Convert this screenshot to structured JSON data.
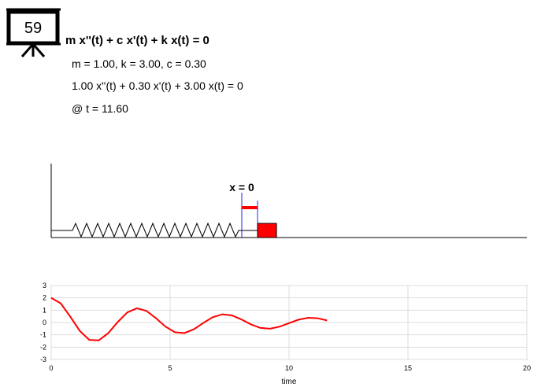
{
  "header": {
    "badge": "59",
    "equation": "m x''(t) + c x'(t) + k x(t) = 0",
    "params": "m = 1.00, k = 3.00, c = 0.30",
    "instance": "1.00 x''(t) + 0.30 x'(t) + 3.00 x(t) = 0",
    "time": "@ t = 11.60"
  },
  "simulation": {
    "origin_label": "x = 0"
  },
  "chart_data": {
    "type": "line",
    "xlabel": "time",
    "x": [
      0,
      0.4,
      0.8,
      1.2,
      1.6,
      2.0,
      2.4,
      2.8,
      3.2,
      3.6,
      4.0,
      4.4,
      4.8,
      5.2,
      5.6,
      6.0,
      6.4,
      6.8,
      7.2,
      7.6,
      8.0,
      8.4,
      8.8,
      9.2,
      9.6,
      10.0,
      10.4,
      10.8,
      11.2,
      11.6
    ],
    "values": [
      2,
      1.556,
      0.486,
      -0.673,
      -1.412,
      -1.451,
      -0.86,
      0.042,
      0.819,
      1.155,
      0.95,
      0.355,
      -0.327,
      -0.79,
      -0.858,
      -0.546,
      -0.031,
      0.438,
      0.665,
      0.575,
      0.246,
      -0.153,
      -0.44,
      -0.503,
      -0.341,
      -0.05,
      0.231,
      0.38,
      0.346,
      0.167
    ],
    "color": "#ff0000",
    "xlim": [
      0,
      20
    ],
    "xticks": [
      0,
      5,
      10,
      15,
      20
    ],
    "ylim": [
      -3,
      3
    ],
    "yticks": [
      -3,
      -2,
      -1,
      0,
      1,
      2,
      3
    ],
    "grid": true
  }
}
